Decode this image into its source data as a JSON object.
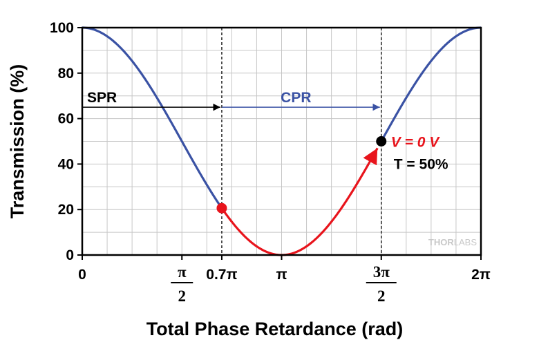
{
  "chart_data": {
    "type": "line",
    "xlabel": "Total Phase Retardance (rad)",
    "ylabel": "Transmission (%)",
    "xlim": [
      0,
      6.283185
    ],
    "ylim": [
      0,
      100
    ],
    "grid": true,
    "y_ticks": [
      {
        "value": 0,
        "label": "0"
      },
      {
        "value": 20,
        "label": "20"
      },
      {
        "value": 40,
        "label": "40"
      },
      {
        "value": 60,
        "label": "60"
      },
      {
        "value": 80,
        "label": "80"
      },
      {
        "value": 100,
        "label": "100"
      }
    ],
    "x_ticks": [
      {
        "value": 0,
        "label": "0",
        "kind": "plain"
      },
      {
        "value": 1.570796,
        "num": "π",
        "den": "2",
        "kind": "frac"
      },
      {
        "value": 2.199115,
        "label": "0.7π",
        "kind": "plain"
      },
      {
        "value": 3.141593,
        "label": "π",
        "kind": "plain"
      },
      {
        "value": 4.712389,
        "num": "3π",
        "den": "2",
        "kind": "frac"
      },
      {
        "value": 6.283185,
        "label": "2π",
        "kind": "plain"
      }
    ],
    "curve": {
      "function": "T = 50 * (1 + cos(x))",
      "colors": {
        "normal": "#3a52a4",
        "highlight": "#e8141c"
      },
      "highlight_range": [
        2.199115,
        4.712389
      ]
    },
    "points": [
      {
        "x": 2.199115,
        "y": 20.6,
        "color": "#e8141c"
      },
      {
        "x": 4.712389,
        "y": 50,
        "color": "#000000"
      }
    ],
    "vlines": [
      2.199115,
      4.712389
    ],
    "arrows": {
      "spr": {
        "label": "SPR",
        "x_from": 0,
        "x_to": 2.199115,
        "y": 65,
        "color": "#000000"
      },
      "cpr": {
        "label": "CPR",
        "x_from": 2.199115,
        "x_to": 4.712389,
        "y": 65,
        "color": "#3a52a4"
      }
    },
    "annotation": {
      "v_label": "V = 0 V",
      "t_label": "T = 50%",
      "v_color": "#e8141c",
      "t_color": "#000000"
    }
  },
  "brand": {
    "thor": "THOR",
    "labs": "LABS"
  }
}
